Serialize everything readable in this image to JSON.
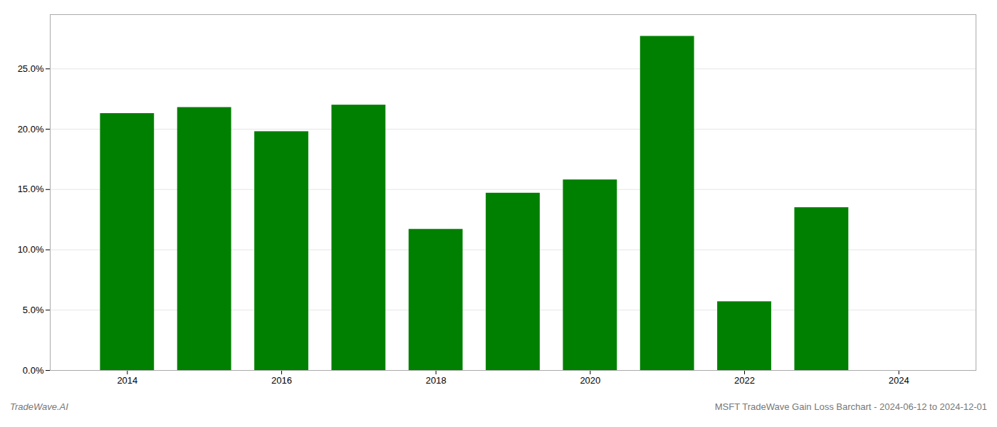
{
  "chart_data": {
    "type": "bar",
    "x": [
      2014,
      2015,
      2016,
      2017,
      2018,
      2019,
      2020,
      2021,
      2022,
      2023
    ],
    "values": [
      0.213,
      0.218,
      0.198,
      0.22,
      0.117,
      0.147,
      0.158,
      0.277,
      0.057,
      0.135
    ],
    "color": "#008000",
    "xlim": [
      2013.0,
      2025.0
    ],
    "xticks": [
      2014,
      2016,
      2018,
      2020,
      2022,
      2024
    ],
    "ylim": [
      0,
      0.295
    ],
    "yticks": [
      {
        "value": 0.0,
        "label": "0.0%"
      },
      {
        "value": 0.05,
        "label": "5.0%"
      },
      {
        "value": 0.1,
        "label": "10.0%"
      },
      {
        "value": 0.15,
        "label": "15.0%"
      },
      {
        "value": 0.2,
        "label": "20.0%"
      },
      {
        "value": 0.25,
        "label": "25.0%"
      }
    ],
    "grid": true,
    "annotations": [
      "TradeWave.AI",
      "MSFT TradeWave Gain Loss Barchart - 2024-06-12 to 2024-12-01"
    ]
  }
}
